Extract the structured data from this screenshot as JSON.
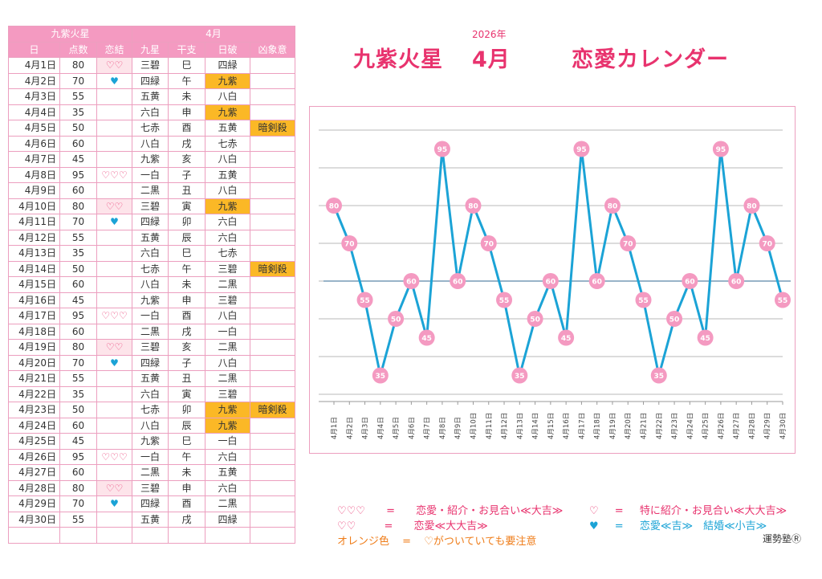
{
  "table": {
    "group_headers": {
      "left": "九紫火星",
      "right": "4月"
    },
    "col_headers": [
      "日",
      "点数",
      "恋結",
      "九星",
      "干支",
      "日破",
      "凶象意"
    ],
    "rows": [
      {
        "date": "4月1日",
        "score": "80",
        "love": "♡♡",
        "star": "三碧",
        "eto": "巳",
        "hakai": "四緑",
        "kyo": "",
        "love_hl": true,
        "hakai_hl": false
      },
      {
        "date": "4月2日",
        "score": "70",
        "love": "♥",
        "star": "四緑",
        "eto": "午",
        "hakai": "九紫",
        "kyo": "",
        "love_hl": false,
        "hakai_hl": true
      },
      {
        "date": "4月3日",
        "score": "55",
        "love": "",
        "star": "五黄",
        "eto": "未",
        "hakai": "八白",
        "kyo": "",
        "love_hl": false,
        "hakai_hl": false
      },
      {
        "date": "4月4日",
        "score": "35",
        "love": "",
        "star": "六白",
        "eto": "申",
        "hakai": "九紫",
        "kyo": "",
        "love_hl": false,
        "hakai_hl": true
      },
      {
        "date": "4月5日",
        "score": "50",
        "love": "",
        "star": "七赤",
        "eto": "酉",
        "hakai": "五黄",
        "kyo": "暗剣殺",
        "love_hl": false,
        "hakai_hl": false
      },
      {
        "date": "4月6日",
        "score": "60",
        "love": "",
        "star": "八白",
        "eto": "戌",
        "hakai": "七赤",
        "kyo": "",
        "love_hl": false,
        "hakai_hl": false
      },
      {
        "date": "4月7日",
        "score": "45",
        "love": "",
        "star": "九紫",
        "eto": "亥",
        "hakai": "八白",
        "kyo": "",
        "love_hl": false,
        "hakai_hl": false
      },
      {
        "date": "4月8日",
        "score": "95",
        "love": "♡♡♡",
        "star": "一白",
        "eto": "子",
        "hakai": "五黄",
        "kyo": "",
        "love_hl": false,
        "hakai_hl": false
      },
      {
        "date": "4月9日",
        "score": "60",
        "love": "",
        "star": "二黒",
        "eto": "丑",
        "hakai": "八白",
        "kyo": "",
        "love_hl": false,
        "hakai_hl": false
      },
      {
        "date": "4月10日",
        "score": "80",
        "love": "♡♡",
        "star": "三碧",
        "eto": "寅",
        "hakai": "九紫",
        "kyo": "",
        "love_hl": true,
        "hakai_hl": true
      },
      {
        "date": "4月11日",
        "score": "70",
        "love": "♥",
        "star": "四緑",
        "eto": "卯",
        "hakai": "六白",
        "kyo": "",
        "love_hl": false,
        "hakai_hl": false
      },
      {
        "date": "4月12日",
        "score": "55",
        "love": "",
        "star": "五黄",
        "eto": "辰",
        "hakai": "六白",
        "kyo": "",
        "love_hl": false,
        "hakai_hl": false
      },
      {
        "date": "4月13日",
        "score": "35",
        "love": "",
        "star": "六白",
        "eto": "巳",
        "hakai": "七赤",
        "kyo": "",
        "love_hl": false,
        "hakai_hl": false
      },
      {
        "date": "4月14日",
        "score": "50",
        "love": "",
        "star": "七赤",
        "eto": "午",
        "hakai": "三碧",
        "kyo": "暗剣殺",
        "love_hl": false,
        "hakai_hl": false
      },
      {
        "date": "4月15日",
        "score": "60",
        "love": "",
        "star": "八白",
        "eto": "未",
        "hakai": "二黒",
        "kyo": "",
        "love_hl": false,
        "hakai_hl": false
      },
      {
        "date": "4月16日",
        "score": "45",
        "love": "",
        "star": "九紫",
        "eto": "申",
        "hakai": "三碧",
        "kyo": "",
        "love_hl": false,
        "hakai_hl": false
      },
      {
        "date": "4月17日",
        "score": "95",
        "love": "♡♡♡",
        "star": "一白",
        "eto": "酉",
        "hakai": "八白",
        "kyo": "",
        "love_hl": false,
        "hakai_hl": false
      },
      {
        "date": "4月18日",
        "score": "60",
        "love": "",
        "star": "二黒",
        "eto": "戌",
        "hakai": "一白",
        "kyo": "",
        "love_hl": false,
        "hakai_hl": false
      },
      {
        "date": "4月19日",
        "score": "80",
        "love": "♡♡",
        "star": "三碧",
        "eto": "亥",
        "hakai": "二黒",
        "kyo": "",
        "love_hl": true,
        "hakai_hl": false
      },
      {
        "date": "4月20日",
        "score": "70",
        "love": "♥",
        "star": "四緑",
        "eto": "子",
        "hakai": "八白",
        "kyo": "",
        "love_hl": false,
        "hakai_hl": false
      },
      {
        "date": "4月21日",
        "score": "55",
        "love": "",
        "star": "五黄",
        "eto": "丑",
        "hakai": "二黒",
        "kyo": "",
        "love_hl": false,
        "hakai_hl": false
      },
      {
        "date": "4月22日",
        "score": "35",
        "love": "",
        "star": "六白",
        "eto": "寅",
        "hakai": "三碧",
        "kyo": "",
        "love_hl": false,
        "hakai_hl": false
      },
      {
        "date": "4月23日",
        "score": "50",
        "love": "",
        "star": "七赤",
        "eto": "卯",
        "hakai": "九紫",
        "kyo": "暗剣殺",
        "love_hl": false,
        "hakai_hl": true
      },
      {
        "date": "4月24日",
        "score": "60",
        "love": "",
        "star": "八白",
        "eto": "辰",
        "hakai": "九紫",
        "kyo": "",
        "love_hl": false,
        "hakai_hl": true
      },
      {
        "date": "4月25日",
        "score": "45",
        "love": "",
        "star": "九紫",
        "eto": "巳",
        "hakai": "一白",
        "kyo": "",
        "love_hl": false,
        "hakai_hl": false
      },
      {
        "date": "4月26日",
        "score": "95",
        "love": "♡♡♡",
        "star": "一白",
        "eto": "午",
        "hakai": "六白",
        "kyo": "",
        "love_hl": false,
        "hakai_hl": false
      },
      {
        "date": "4月27日",
        "score": "60",
        "love": "",
        "star": "二黒",
        "eto": "未",
        "hakai": "五黄",
        "kyo": "",
        "love_hl": false,
        "hakai_hl": false
      },
      {
        "date": "4月28日",
        "score": "80",
        "love": "♡♡",
        "star": "三碧",
        "eto": "申",
        "hakai": "六白",
        "kyo": "",
        "love_hl": true,
        "hakai_hl": false
      },
      {
        "date": "4月29日",
        "score": "70",
        "love": "♥",
        "star": "四緑",
        "eto": "酉",
        "hakai": "二黒",
        "kyo": "",
        "love_hl": false,
        "hakai_hl": false
      },
      {
        "date": "4月30日",
        "score": "55",
        "love": "",
        "star": "五黄",
        "eto": "戌",
        "hakai": "四緑",
        "kyo": "",
        "love_hl": false,
        "hakai_hl": false
      }
    ]
  },
  "header": {
    "year": "2026年",
    "star_name": "九紫火星",
    "month": "4月",
    "title": "恋愛カレンダー"
  },
  "chart_data": {
    "type": "line",
    "x": [
      "4月1日",
      "4月2日",
      "4月3日",
      "4月4日",
      "4月5日",
      "4月6日",
      "4月7日",
      "4月8日",
      "4月9日",
      "4月10日",
      "4月11日",
      "4月12日",
      "4月13日",
      "4月14日",
      "4月15日",
      "4月16日",
      "4月17日",
      "4月18日",
      "4月19日",
      "4月20日",
      "4月21日",
      "4月22日",
      "4月23日",
      "4月24日",
      "4月25日",
      "4月26日",
      "4月27日",
      "4月28日",
      "4月29日",
      "4月30日"
    ],
    "series": [
      {
        "values": [
          80,
          70,
          55,
          35,
          50,
          60,
          45,
          95,
          60,
          80,
          70,
          55,
          35,
          50,
          60,
          45,
          95,
          60,
          80,
          70,
          55,
          35,
          50,
          60,
          45,
          95,
          60,
          80,
          70,
          55
        ]
      }
    ],
    "ylim": [
      0,
      100
    ],
    "reference_line": 60,
    "grid": true,
    "line_color": "#1ba3d6",
    "marker_color": "#f49ac1",
    "reference_color": "#5b86a6",
    "title": "",
    "xlabel": "",
    "ylabel": ""
  },
  "legend": {
    "item1_sym": "♡♡♡",
    "item1_eq": "=",
    "item1_text": "恋愛・紹介・お見合い≪大吉≫",
    "item2_sym": "♡",
    "item2_eq": "=",
    "item2_text": "特に紹介・お見合い≪大大吉≫",
    "item3_sym": "♡♡",
    "item3_eq": "=",
    "item3_text": "恋愛≪大大吉≫",
    "item4_sym": "♥",
    "item4_eq": "=",
    "item4_text": "恋愛≪吉≫　結婚≪小吉≫",
    "item5_sym": "オレンジ色",
    "item5_eq": "=",
    "item5_text": "♡がついていても要注意"
  },
  "brand": "運勢塾Ⓡ",
  "colors": {
    "pink": "#e8336e",
    "header_pink": "#f49ac1",
    "orange": "#fbb826",
    "blue": "#1ba3d6"
  }
}
